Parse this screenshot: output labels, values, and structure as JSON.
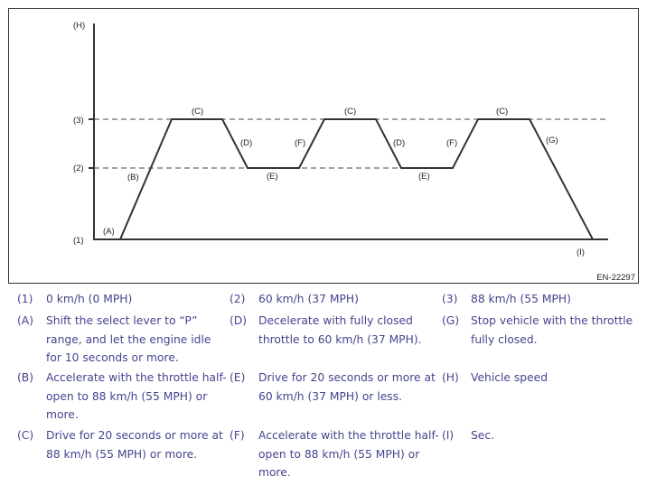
{
  "diagram": {
    "y_axis_label": "(H)",
    "x_axis_label": "(I)",
    "levels": [
      {
        "key": "(1)",
        "speed": "0 km/h (0 MPH)"
      },
      {
        "key": "(2)",
        "speed": "60 km/h (37 MPH)"
      },
      {
        "key": "(3)",
        "speed": "88 km/h (55 MPH)"
      }
    ],
    "segment_labels": [
      "(A)",
      "(B)",
      "(C)",
      "(D)",
      "(E)",
      "(F)",
      "(C)",
      "(D)",
      "(E)",
      "(F)",
      "(C)",
      "(G)"
    ],
    "figure_code": "EN-22297",
    "line_color": "#333333",
    "text_color": "#45458f"
  },
  "legend": [
    {
      "key": "(1)",
      "text": "0 km/h (0 MPH)"
    },
    {
      "key": "(2)",
      "text": "60 km/h (37 MPH)"
    },
    {
      "key": "(3)",
      "text": "88 km/h (55 MPH)"
    },
    {
      "key": "(A)",
      "text": "Shift the select lever to “P” range, and let the engine idle for 10 seconds or more."
    },
    {
      "key": "(D)",
      "text": "Decelerate with fully closed throttle to 60 km/h (37 MPH)."
    },
    {
      "key": "(G)",
      "text": "Stop vehicle with the throttle fully closed."
    },
    {
      "key": "(B)",
      "text": "Accelerate with the throttle half-open to 88 km/h (55 MPH) or more."
    },
    {
      "key": "(E)",
      "text": "Drive for 20 seconds or more at 60 km/h (37 MPH) or less."
    },
    {
      "key": "(H)",
      "text": "Vehicle speed"
    },
    {
      "key": "(C)",
      "text": "Drive for 20 seconds or more at 88 km/h (55 MPH) or more."
    },
    {
      "key": "(F)",
      "text": "Accelerate with the throttle half-open to 88 km/h (55 MPH) or more."
    },
    {
      "key": "(I)",
      "text": "Sec."
    }
  ]
}
